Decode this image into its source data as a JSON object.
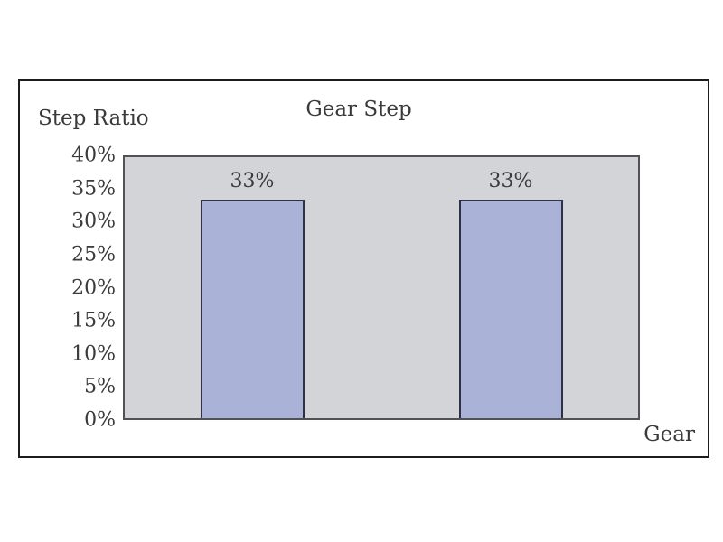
{
  "chart_data": {
    "type": "bar",
    "title": "Gear Step",
    "ylabel": "Step Ratio",
    "xlabel": "Gear",
    "categories": [
      "",
      ""
    ],
    "values": [
      33,
      33
    ],
    "bar_labels": [
      "33%",
      "33%"
    ],
    "ylim": [
      0,
      40
    ],
    "yticks": [
      0,
      5,
      10,
      15,
      20,
      25,
      30,
      35,
      40
    ],
    "ytick_labels": [
      "0%",
      "5%",
      "10%",
      "15%",
      "20%",
      "25%",
      "30%",
      "35%",
      "40%"
    ],
    "grid": false,
    "legend_position": "none",
    "colors": {
      "bar_fill": "#aab2d8",
      "bar_border": "#2e3145",
      "plot_background": "#d3d4d7",
      "plot_border": "#515157",
      "frame_border": "#1c1c1c",
      "text": "#3a3a3a",
      "page_background": "#ffffff"
    }
  }
}
